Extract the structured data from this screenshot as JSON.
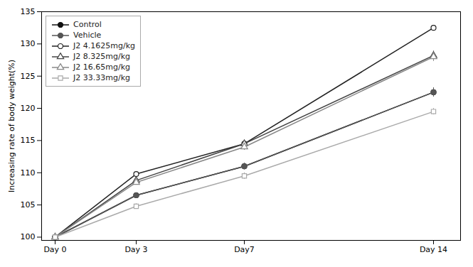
{
  "chart_data": {
    "type": "line",
    "x": [
      0,
      3,
      7,
      14
    ],
    "xlim": [
      -0.5,
      15.0
    ],
    "xticks": [
      {
        "value": 0,
        "label": "Day 0"
      },
      {
        "value": 3,
        "label": "Day 3"
      },
      {
        "value": 7,
        "label": "Day7"
      },
      {
        "value": 14,
        "label": "Day 14"
      }
    ],
    "ylabel": "Increasing rate of body weight(%)",
    "ylim": [
      99.5,
      135
    ],
    "yticks": [
      100,
      105,
      110,
      115,
      120,
      125,
      130,
      135
    ],
    "grid": false,
    "legend": "upper left",
    "series": [
      {
        "name": "Control",
        "color": "#111111",
        "marker": "circle",
        "line_style": "solid",
        "values": [
          100,
          106.5,
          111.0,
          122.5
        ],
        "errors": [
          0.0,
          0.4,
          0.5,
          0.7
        ]
      },
      {
        "name": "Vehicle",
        "color": "#555555",
        "marker": "circle",
        "line_style": "solid",
        "values": [
          100,
          106.5,
          111.0,
          122.5
        ],
        "errors": [
          0.0,
          0.4,
          0.5,
          0.7
        ]
      },
      {
        "name": "J2 4.1625mg/kg",
        "color": "#222222",
        "marker": "hollow circle",
        "line_style": "solid",
        "values": [
          100,
          109.8,
          114.5,
          132.5
        ],
        "errors": [
          0.0,
          0.4,
          0.5,
          0.4
        ]
      },
      {
        "name": "J2 8.325mg/kg",
        "color": "#444444",
        "marker": "hollow triangle",
        "line_style": "solid",
        "values": [
          100,
          108.8,
          114.5,
          128.2
        ],
        "errors": [
          0.0,
          0.4,
          0.5,
          0.7
        ]
      },
      {
        "name": "J2 16.65mg/kg",
        "color": "#888888",
        "marker": "hollow triangle",
        "line_style": "solid",
        "values": [
          100,
          108.5,
          114.0,
          128.0
        ],
        "errors": [
          0.0,
          0.4,
          0.5,
          0.7
        ]
      },
      {
        "name": "J2 33.33mg/kg",
        "color": "#aaaaaa",
        "marker": "hollow square",
        "line_style": "solid",
        "values": [
          100,
          104.8,
          109.5,
          119.5
        ],
        "errors": [
          0.0,
          0.4,
          0.5,
          0.5
        ]
      }
    ]
  }
}
